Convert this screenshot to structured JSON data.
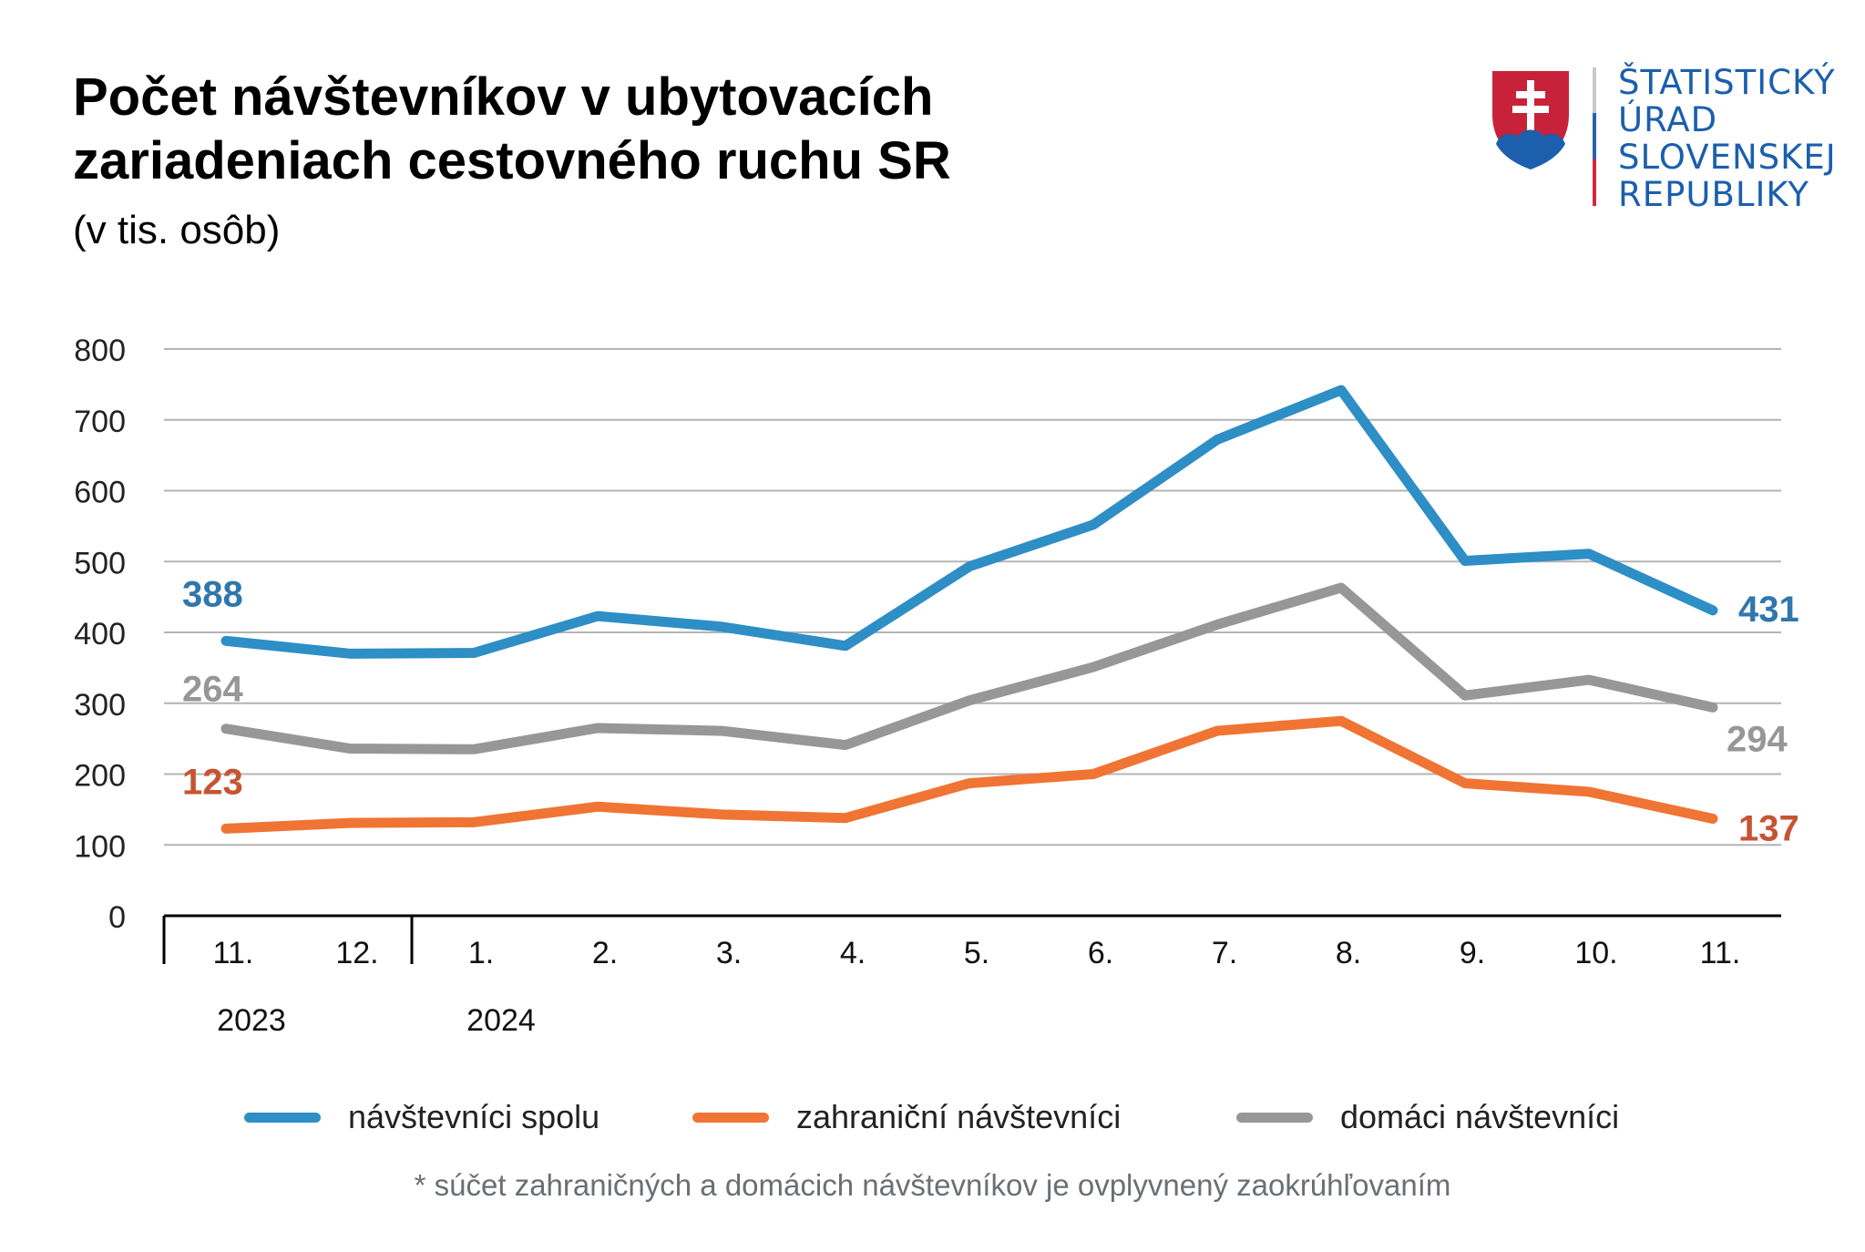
{
  "header": {
    "title_line1": "Počet návštevníkov v ubytovacích",
    "title_line2": "zariadeniach cestovného ruchu SR",
    "subtitle": "(v tis. osôb)"
  },
  "logo": {
    "lines": [
      "ŠTATISTICKÝ",
      "ÚRAD",
      "SLOVENSKEJ",
      "REPUBLIKY"
    ],
    "colors": {
      "red": "#c8223a",
      "blue": "#1b5fad",
      "white": "#ffffff"
    }
  },
  "chart_data": {
    "type": "line",
    "title": "Počet návštevníkov v ubytovacích zariadeniach cestovného ruchu SR",
    "subtitle": "(v tis. osôb)",
    "xlabel": "",
    "ylabel": "",
    "ylim": [
      0,
      800
    ],
    "yticks": [
      0,
      100,
      200,
      300,
      400,
      500,
      600,
      700,
      800
    ],
    "grid": true,
    "categories": [
      "11.",
      "12.",
      "1.",
      "2.",
      "3.",
      "4.",
      "5.",
      "6.",
      "7.",
      "8.",
      "9.",
      "10.",
      "11."
    ],
    "year_groups": [
      {
        "label": "2023",
        "start": 0,
        "end": 1
      },
      {
        "label": "2024",
        "start": 2,
        "end": 12
      }
    ],
    "series": [
      {
        "name": "návštevníci spolu",
        "color": "#2e8ec6",
        "label_color": "#2f77ad",
        "values": [
          388,
          370,
          371,
          423,
          408,
          381,
          493,
          552,
          672,
          742,
          501,
          511,
          431
        ],
        "labels": {
          "first": "388",
          "last": "431"
        }
      },
      {
        "name": "zahraniční návštevníci",
        "color": "#f07434",
        "label_color": "#c65432",
        "values": [
          123,
          131,
          132,
          154,
          143,
          138,
          187,
          200,
          261,
          275,
          187,
          175,
          137
        ],
        "labels": {
          "first": "123",
          "last": "137"
        }
      },
      {
        "name": "domáci návštevníci",
        "color": "#979797",
        "label_color": "#979797",
        "values": [
          264,
          236,
          235,
          265,
          261,
          241,
          304,
          351,
          411,
          463,
          311,
          333,
          294
        ],
        "labels": {
          "first": "264",
          "last": "294"
        }
      }
    ],
    "legend_position": "bottom",
    "footnote": "* súčet zahraničných a domácich návštevníkov je ovplyvnený zaokrúhľovaním"
  }
}
